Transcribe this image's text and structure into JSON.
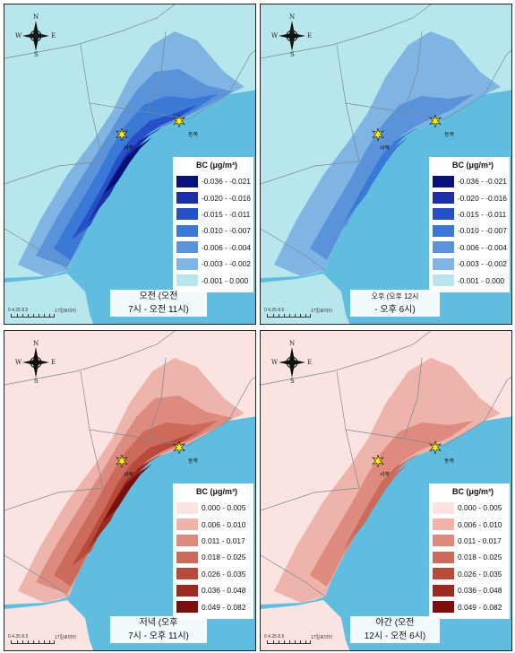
{
  "compass": {
    "n": "N",
    "s": "S",
    "e": "E",
    "w": "W"
  },
  "sites": {
    "west": "서쪽",
    "east": "동쪽"
  },
  "scalebar": {
    "ticks": "0  4.25 8.5",
    "unit": "17킬로미터"
  },
  "panels": [
    {
      "id": "morning",
      "caption_line1": "오전 (오전",
      "caption_line2": "7시 - 오전 11시)",
      "legend_title": "BC (μg/m³)",
      "legend": [
        {
          "label": "-0.036 - -0.021",
          "color": "#08107a"
        },
        {
          "label": "-0.020 - -0.016",
          "color": "#1c2fa6"
        },
        {
          "label": "-0.015 - -0.011",
          "color": "#2650c8"
        },
        {
          "label": "-0.010 - -0.007",
          "color": "#3a7ad6"
        },
        {
          "label": "-0.006 - -0.004",
          "color": "#5b93db"
        },
        {
          "label": "-0.003 - -0.002",
          "color": "#7fb4e3"
        },
        {
          "label": "-0.001 - 0.000",
          "color": "#b7e7ec"
        }
      ],
      "intensity": "high"
    },
    {
      "id": "afternoon",
      "caption_line1": "오후 (오후 12시",
      "caption_line2": "- 오후 6시)",
      "legend_title": "BC (μg/m³)",
      "legend": [
        {
          "label": "-0.036 - -0.021",
          "color": "#08107a"
        },
        {
          "label": "-0.020 - -0.016",
          "color": "#1c2fa6"
        },
        {
          "label": "-0.015 - -0.011",
          "color": "#2650c8"
        },
        {
          "label": "-0.010 - -0.007",
          "color": "#3a7ad6"
        },
        {
          "label": "-0.006 - -0.004",
          "color": "#5b93db"
        },
        {
          "label": "-0.003 - -0.002",
          "color": "#7fb4e3"
        },
        {
          "label": "-0.001 - 0.000",
          "color": "#b7e7ec"
        }
      ],
      "intensity": "low"
    },
    {
      "id": "evening",
      "caption_line1": "저녁 (오후",
      "caption_line2": "7시 - 오후 11시)",
      "legend_title": "BC (μg/m³)",
      "legend": [
        {
          "label": "0.000 - 0.005",
          "color": "#fbe3e1"
        },
        {
          "label": "0.006 - 0.010",
          "color": "#eeb3aa"
        },
        {
          "label": "0.011 - 0.017",
          "color": "#dd8b7e"
        },
        {
          "label": "0.018 - 0.025",
          "color": "#cc6a5b"
        },
        {
          "label": "0.026 - 0.035",
          "color": "#b84a3c"
        },
        {
          "label": "0.036 - 0.048",
          "color": "#9c2a20"
        },
        {
          "label": "0.049 - 0.082",
          "color": "#7a0f0d"
        }
      ],
      "intensity": "high"
    },
    {
      "id": "night",
      "caption_line1": "야간 (오전",
      "caption_line2": "12시 - 오전 6시)",
      "legend_title": "BC (μg/m³)",
      "legend": [
        {
          "label": "0.000 - 0.005",
          "color": "#fbe3e1"
        },
        {
          "label": "0.006 - 0.010",
          "color": "#eeb3aa"
        },
        {
          "label": "0.011 - 0.017",
          "color": "#dd8b7e"
        },
        {
          "label": "0.018 - 0.025",
          "color": "#cc6a5b"
        },
        {
          "label": "0.026 - 0.035",
          "color": "#b84a3c"
        },
        {
          "label": "0.036 - 0.048",
          "color": "#9c2a20"
        },
        {
          "label": "0.049 - 0.082",
          "color": "#7a0f0d"
        }
      ],
      "intensity": "low"
    }
  ]
}
